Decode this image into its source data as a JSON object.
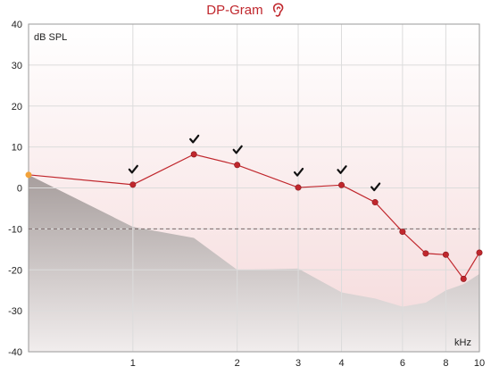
{
  "chart_data": {
    "type": "line",
    "title": "DP-Gram",
    "title_icon": "ear-icon",
    "ylabel": "dB SPL",
    "xlabel": "kHz",
    "x_scale": "log",
    "xlim": [
      0.5,
      10
    ],
    "ylim": [
      -40,
      40
    ],
    "y_ticks": [
      40,
      30,
      20,
      10,
      0,
      -10,
      -20,
      -30,
      -40
    ],
    "x_ticks": [
      1,
      2,
      3,
      4,
      6,
      8,
      10
    ],
    "x_tick_labels": [
      "1",
      "2",
      "3",
      "4",
      "6",
      "8",
      "10"
    ],
    "reference_line": -10,
    "grid": true,
    "colors": {
      "series": "#c0272d",
      "noise_floor": "#b3a9a8",
      "title": "#c0272d"
    },
    "series": [
      {
        "x": [
          0.5,
          1.0,
          1.5,
          2.0,
          3.0,
          4.0,
          5.0,
          6.0,
          7.0,
          8.0,
          9.0,
          10.0
        ],
        "y": [
          3.2,
          0.8,
          8.2,
          5.6,
          0.1,
          0.7,
          -3.5,
          -10.7,
          -16.0,
          -16.3,
          -22.2,
          -15.8
        ],
        "start_marker_color": "#f2a23a"
      }
    ],
    "noise_floor": {
      "x": [
        0.5,
        1.0,
        1.5,
        2.0,
        3.0,
        4.0,
        5.0,
        6.0,
        7.0,
        8.0,
        9.0,
        10.0
      ],
      "y": [
        3.2,
        -9.5,
        -12.2,
        -20.0,
        -19.7,
        -25.5,
        -27.0,
        -29.0,
        -28.0,
        -25.0,
        -23.5,
        -21.0
      ]
    },
    "checkmarks_at": [
      1.0,
      1.5,
      2.0,
      3.0,
      4.0,
      5.0
    ]
  }
}
